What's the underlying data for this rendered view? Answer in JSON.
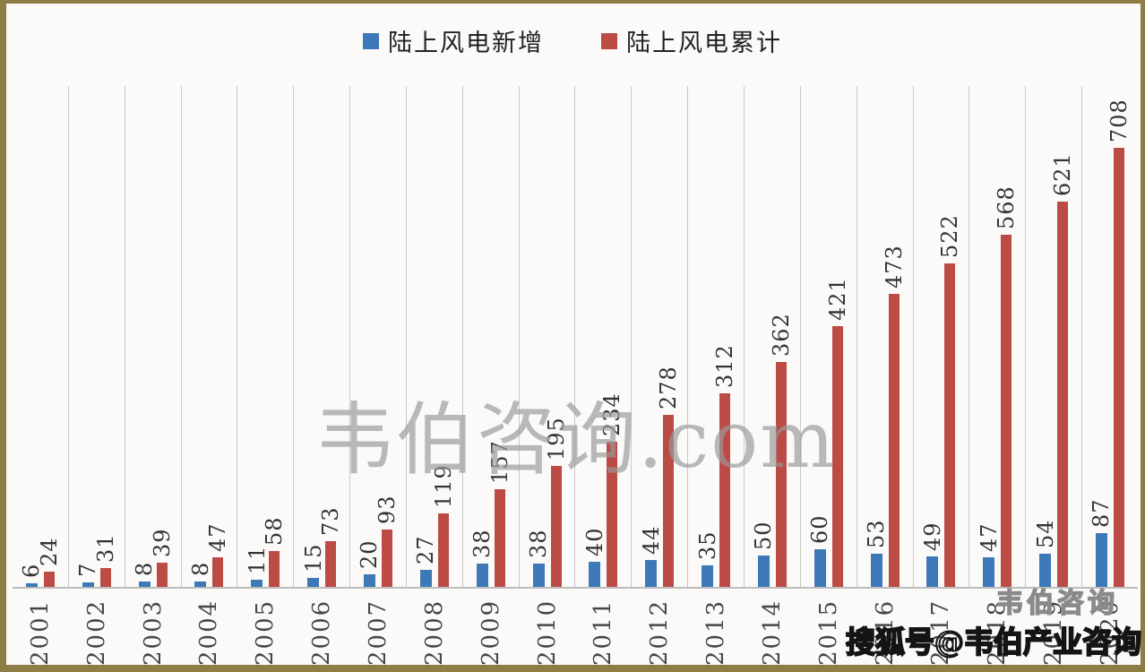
{
  "legend": {
    "items": [
      {
        "label": "陆上风电新增",
        "color": "#3d79b7"
      },
      {
        "label": "陆上风电累计",
        "color": "#bc4a45"
      }
    ]
  },
  "chart_data": {
    "type": "bar",
    "title": "",
    "categories": [
      "2001",
      "2002",
      "2003",
      "2004",
      "2005",
      "2006",
      "2007",
      "2008",
      "2009",
      "2010",
      "2011",
      "2012",
      "2013",
      "2014",
      "2015",
      "2016",
      "2017",
      "2018",
      "2019",
      "2020"
    ],
    "series": [
      {
        "name": "陆上风电新增",
        "color": "#3d79b7",
        "values": [
          6,
          7,
          8,
          8,
          11,
          15,
          20,
          27,
          38,
          38,
          40,
          44,
          35,
          50,
          60,
          53,
          49,
          47,
          54,
          87
        ]
      },
      {
        "name": "陆上风电累计",
        "color": "#bc4a45",
        "values": [
          24,
          31,
          39,
          47,
          58,
          73,
          93,
          119,
          157,
          195,
          234,
          278,
          312,
          362,
          421,
          473,
          522,
          568,
          621,
          708
        ]
      }
    ],
    "ylim": [
      0,
      708
    ],
    "grid": "vertical-category-separators",
    "legend_position": "top-center",
    "value_labels": "rotated-90-above-bars",
    "xlabel": "",
    "ylabel": ""
  },
  "watermarks": {
    "center": "韦伯咨询.com",
    "corner_line1": "韦伯咨询",
    "corner_line2": "搜狐号@韦伯产业咨询"
  },
  "frame_color": "#8f7d46"
}
